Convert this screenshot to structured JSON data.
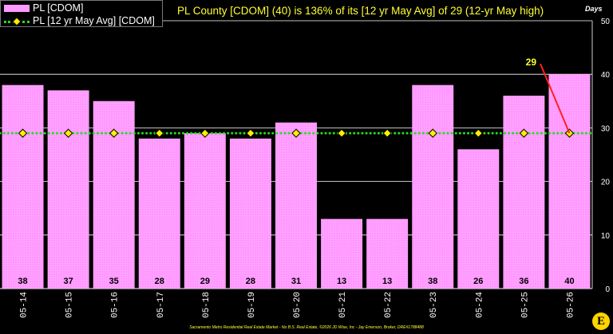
{
  "legend": {
    "bar_label": "PL [CDOM]",
    "line_label": "PL [12 yr May Avg] [CDOM]"
  },
  "header": {
    "title": "PL County [CDOM] (40) is 136% of its [12 yr May Avg] of 29 (12-yr May high)",
    "units": "Days"
  },
  "footer": {
    "text": "Sacramento Metro Residential Real Estate Market - No B.S. Real Estate, ©2026 JD Wise, Inc - Jay Emerson, Broker, DRE#1788488"
  },
  "logo": {
    "letter": "E"
  },
  "chart_data": {
    "type": "bar",
    "categories": [
      "05-14",
      "05-15",
      "05-16",
      "05-17",
      "05-18",
      "05-19",
      "05-20",
      "05-21",
      "05-22",
      "05-23",
      "05-24",
      "05-25",
      "05-26"
    ],
    "series": [
      {
        "name": "PL [CDOM]",
        "type": "bar",
        "values": [
          38,
          37,
          35,
          28,
          29,
          28,
          31,
          13,
          13,
          38,
          26,
          36,
          40
        ]
      },
      {
        "name": "PL [12 yr May Avg] [CDOM]",
        "type": "line",
        "values": [
          29,
          29,
          29,
          29,
          29,
          29,
          29,
          29,
          29,
          29,
          29,
          29,
          29
        ]
      }
    ],
    "annotation": {
      "text": "29",
      "category": "05-26",
      "value": 29
    },
    "ylim": [
      0,
      50
    ],
    "yticks": [
      0,
      10,
      20,
      30,
      40,
      50
    ],
    "ylabel": "Days",
    "grid": true,
    "colors": {
      "bar": "#ff99ff",
      "line": "#22dd22",
      "marker": "#ffee00",
      "annotation_line": "#ff2020",
      "annotation_text": "#ffff33"
    }
  }
}
